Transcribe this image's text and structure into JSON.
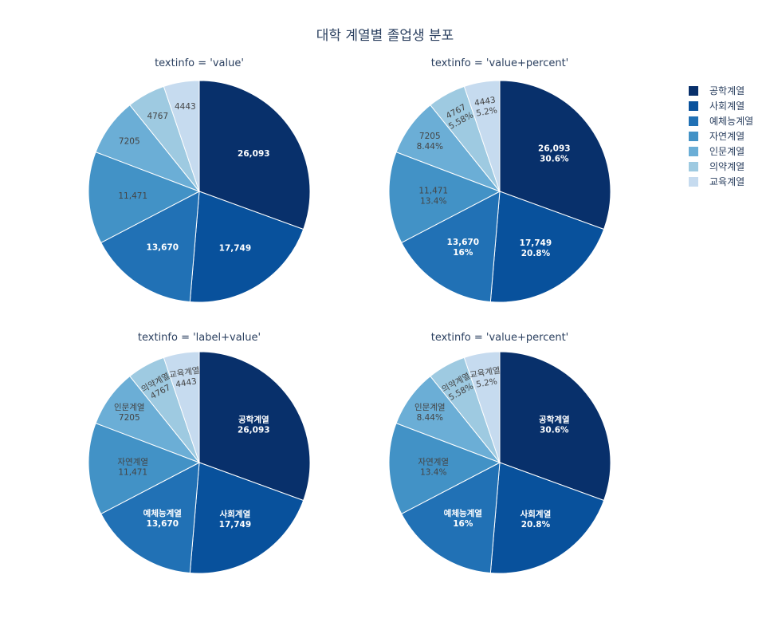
{
  "title": "대학 계열별 졸업생 분포",
  "colors": [
    "#08306b",
    "#08519c",
    "#2171b5",
    "#4292c6",
    "#6baed6",
    "#9ecae1",
    "#c6dbef"
  ],
  "text_dark": "#444444",
  "text_light": "#ffffff",
  "legend": [
    "공학계열",
    "사회계열",
    "예체능계열",
    "자연계열",
    "인문계열",
    "의약계열",
    "교육계열"
  ],
  "chart_data": [
    {
      "type": "pie",
      "title": "textinfo = 'value'",
      "labels": [
        "공학계열",
        "사회계열",
        "예체능계열",
        "자연계열",
        "인문계열",
        "의약계열",
        "교육계열"
      ],
      "values": [
        26093,
        17749,
        13670,
        11471,
        7205,
        4767,
        4443
      ],
      "slice_text": [
        [
          "26,093"
        ],
        [
          "17,749"
        ],
        [
          "13,670"
        ],
        [
          "11,471"
        ],
        [
          "7205"
        ],
        [
          "4767"
        ],
        [
          "4443"
        ]
      ]
    },
    {
      "type": "pie",
      "title": "textinfo = 'value+percent'",
      "labels": [
        "공학계열",
        "사회계열",
        "예체능계열",
        "자연계열",
        "인문계열",
        "의약계열",
        "교육계열"
      ],
      "values": [
        26093,
        17749,
        13670,
        11471,
        7205,
        4767,
        4443
      ],
      "slice_text": [
        [
          "26,093",
          "30.6%"
        ],
        [
          "17,749",
          "20.8%"
        ],
        [
          "13,670",
          "16%"
        ],
        [
          "11,471",
          "13.4%"
        ],
        [
          "7205",
          "8.44%"
        ],
        [
          "4767",
          "5.58%"
        ],
        [
          "4443",
          "5.2%"
        ]
      ]
    },
    {
      "type": "pie",
      "title": "textinfo = 'label+value'",
      "labels": [
        "공학계열",
        "사회계열",
        "예체능계열",
        "자연계열",
        "인문계열",
        "의약계열",
        "교육계열"
      ],
      "values": [
        26093,
        17749,
        13670,
        11471,
        7205,
        4767,
        4443
      ],
      "slice_text": [
        [
          "공학계열",
          "26,093"
        ],
        [
          "사회계열",
          "17,749"
        ],
        [
          "예체능계열",
          "13,670"
        ],
        [
          "자연계열",
          "11,471"
        ],
        [
          "인문계열",
          "7205"
        ],
        [
          "의약계열",
          "4767"
        ],
        [
          "교육계열",
          "4443"
        ]
      ]
    },
    {
      "type": "pie",
      "title": "textinfo = 'value+percent'",
      "labels": [
        "공학계열",
        "사회계열",
        "예체능계열",
        "자연계열",
        "인문계열",
        "의약계열",
        "교육계열"
      ],
      "values": [
        26093,
        17749,
        13670,
        11471,
        7205,
        4767,
        4443
      ],
      "slice_text": [
        [
          "공학계열",
          "30.6%"
        ],
        [
          "사회계열",
          "20.8%"
        ],
        [
          "예체능계열",
          "16%"
        ],
        [
          "자연계열",
          "13.4%"
        ],
        [
          "인문계열",
          "8.44%"
        ],
        [
          "의약계열",
          "5.58%"
        ],
        [
          "교육계열",
          "5.2%"
        ]
      ]
    }
  ]
}
